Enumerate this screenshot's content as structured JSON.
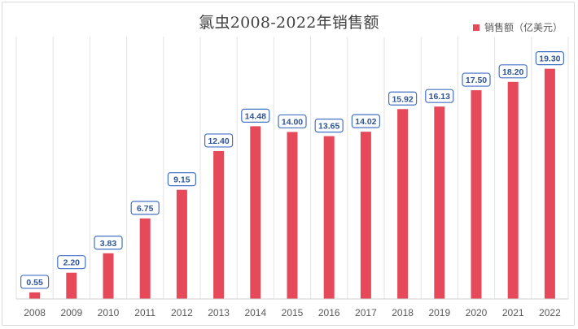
{
  "chart_data": {
    "type": "bar",
    "title": "氯虫2008-2022年销售额",
    "xlabel": "",
    "ylabel": "",
    "legend": {
      "position": "top-right"
    },
    "grid": {
      "vertical": true,
      "horizontal": false
    },
    "ylim": [
      0,
      22
    ],
    "categories": [
      "2008",
      "2009",
      "2010",
      "2011",
      "2012",
      "2013",
      "2014",
      "2015",
      "2016",
      "2017",
      "2018",
      "2019",
      "2020",
      "2021",
      "2022"
    ],
    "series": [
      {
        "name": "销售额（亿美元）",
        "color": "#e64a5a",
        "values": [
          0.55,
          2.2,
          3.83,
          6.75,
          9.15,
          12.4,
          14.48,
          14.0,
          13.65,
          14.02,
          15.92,
          16.13,
          17.5,
          18.2,
          19.3
        ],
        "labels": [
          "0.55",
          "2.20",
          "3.83",
          "6.75",
          "9.15",
          "12.40",
          "14.48",
          "14.00",
          "13.65",
          "14.02",
          "15.92",
          "16.13",
          "17.50",
          "18.20",
          "19.30"
        ]
      }
    ]
  }
}
